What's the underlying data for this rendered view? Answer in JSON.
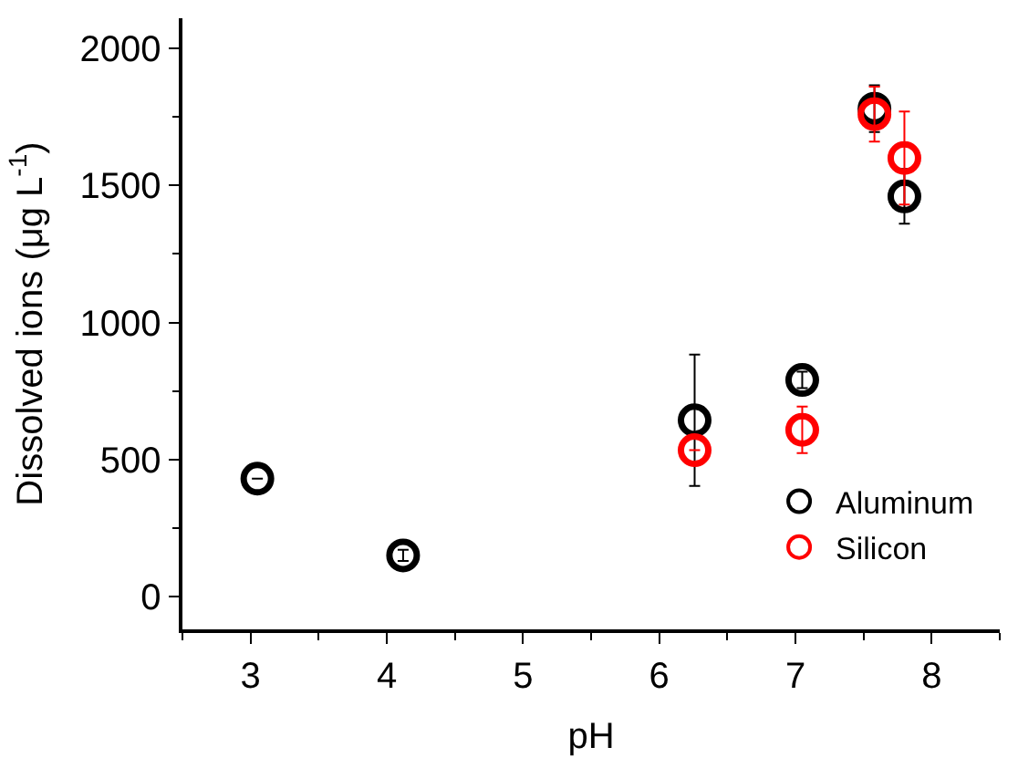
{
  "chart_data": {
    "type": "scatter",
    "xlabel": "pH",
    "ylabel": "Dissolved ions (μg L$^{-1}$)",
    "xlim": [
      2.5,
      8.5
    ],
    "xticks": [
      3,
      4,
      5,
      6,
      7,
      8
    ],
    "ylim": [
      -120,
      2110
    ],
    "yticks": [
      0,
      500,
      1000,
      1500,
      2000
    ],
    "legend": "bottom right",
    "marker": "circle",
    "series": [
      {
        "name": "Aluminum",
        "color": "#000000",
        "x": [
          3.05,
          4.12,
          6.26,
          7.05,
          7.58,
          7.8
        ],
        "values": [
          430,
          150,
          643,
          790,
          1780,
          1460
        ],
        "errors": [
          null,
          20,
          240,
          30,
          85,
          100
        ]
      },
      {
        "name": "Silicon",
        "color": "#ff0000",
        "x": [
          6.26,
          7.05,
          7.58,
          7.8
        ],
        "values": [
          534,
          608,
          1760,
          1600
        ],
        "errors": [
          null,
          85,
          100,
          170
        ]
      }
    ]
  }
}
